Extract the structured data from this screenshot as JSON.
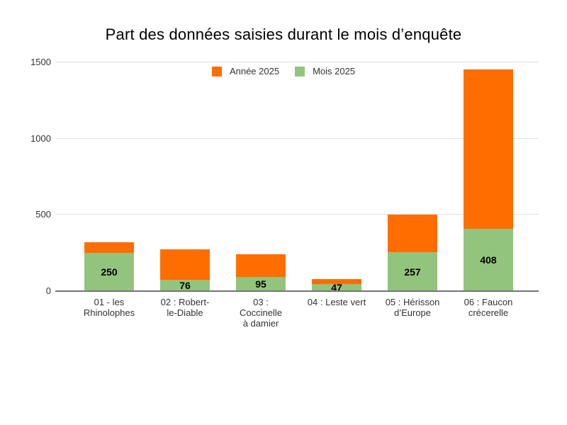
{
  "chart": {
    "title": "Part des données saisies durant le mois d’enquête"
  },
  "chart_data": {
    "type": "bar",
    "stacked": true,
    "title": "Part des données saisies durant le mois d’enquête",
    "categories": [
      "01 - les\nRhinolophes",
      "02 : Robert-\nle-Diable",
      "03 :\nCoccinelle\nà damier",
      "04 : Leste vert",
      "05 : Hérisson\nd’Europe",
      "06 : Faucon\ncrécerelle"
    ],
    "series": [
      {
        "name": "Année 2025",
        "color": "#ff6d01",
        "values": [
          70,
          202,
          150,
          33,
          248,
          1047
        ]
      },
      {
        "name": "Mois 2025",
        "color": "#93c47d",
        "values": [
          250,
          76,
          95,
          47,
          257,
          408
        ]
      }
    ],
    "stack_order_bottom_to_top": [
      "Mois 2025",
      "Année 2025"
    ],
    "stack_totals": [
      320,
      278,
      245,
      80,
      505,
      1455
    ],
    "annotations": {
      "series": "Mois 2025",
      "values": [
        "250",
        "76",
        "95",
        "47",
        "257",
        "408"
      ]
    },
    "ylim": [
      0,
      1500
    ],
    "yticks": [
      0,
      500,
      1000,
      1500
    ],
    "legend_position": "top-center",
    "grid": true,
    "colors": {
      "annee": "#ff6d01",
      "mois": "#93c47d",
      "gridline": "#e0e0e0",
      "baseline": "#757575",
      "axis_text": "#333333",
      "title_text": "#000000",
      "annotation_text": "#000000",
      "background": "#ffffff"
    }
  }
}
